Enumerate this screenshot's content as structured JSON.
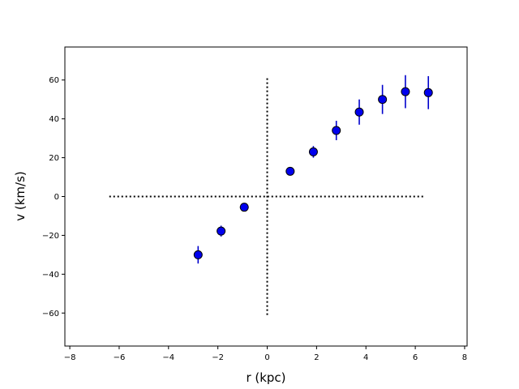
{
  "chart_data": {
    "type": "scatter",
    "xlabel": "r (kpc)",
    "ylabel": "v (km/s)",
    "xlim": [
      -8.2,
      8.1
    ],
    "ylim": [
      -77,
      77
    ],
    "xticks": [
      -8,
      -6,
      -4,
      -2,
      0,
      2,
      4,
      6,
      8
    ],
    "yticks": [
      -60,
      -40,
      -20,
      0,
      20,
      40,
      60
    ],
    "xtick_labels": [
      "−8",
      "−6",
      "−4",
      "−2",
      "0",
      "2",
      "4",
      "6",
      "8"
    ],
    "ytick_labels": [
      "−60",
      "−40",
      "−20",
      "0",
      "20",
      "40",
      "60"
    ],
    "grid": false,
    "reference_lines": {
      "horizontal": {
        "y": 0,
        "x_range": [
          -6.4,
          6.4
        ],
        "style": "dotted"
      },
      "vertical": {
        "x": 0,
        "y_range": [
          -61,
          61
        ],
        "style": "dotted"
      }
    },
    "series": [
      {
        "marker_color": "#0000ee",
        "edge_color": "#000000",
        "errorbar_color": "#0000cc",
        "points": [
          {
            "x": -2.8,
            "y": -30.0,
            "yerr": 4.5
          },
          {
            "x": -1.87,
            "y": -17.8,
            "yerr": 2.8
          },
          {
            "x": -0.93,
            "y": -5.5,
            "yerr": 1.0
          },
          {
            "x": 0.93,
            "y": 13.0,
            "yerr": 1.0
          },
          {
            "x": 1.87,
            "y": 23.0,
            "yerr": 3.0
          },
          {
            "x": 2.8,
            "y": 34.0,
            "yerr": 5.0
          },
          {
            "x": 3.73,
            "y": 43.5,
            "yerr": 6.5
          },
          {
            "x": 4.67,
            "y": 50.0,
            "yerr": 7.5
          },
          {
            "x": 5.6,
            "y": 54.0,
            "yerr": 8.5
          },
          {
            "x": 6.53,
            "y": 53.5,
            "yerr": 8.5
          }
        ]
      }
    ]
  }
}
